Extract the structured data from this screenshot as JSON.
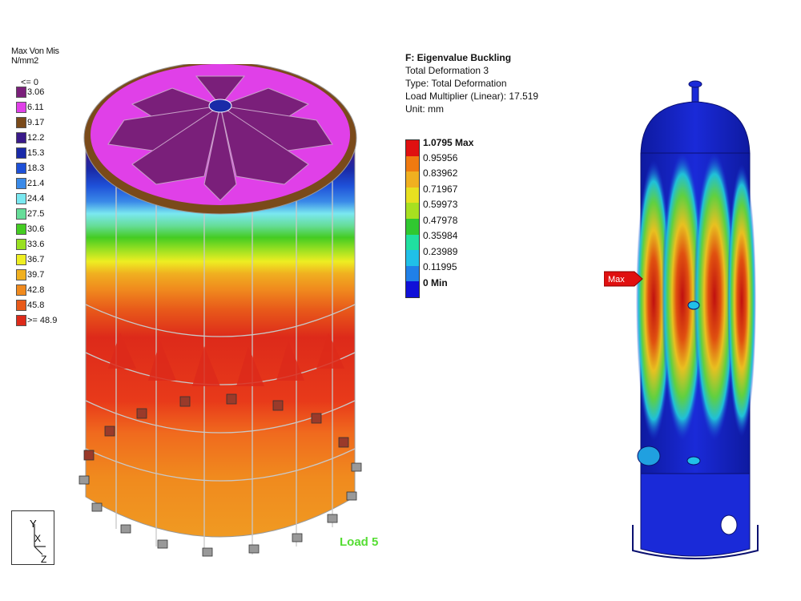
{
  "left_legend": {
    "title_line1": "Max Von Mis",
    "title_line2": "N/mm2",
    "entries": [
      {
        "label": "<= 0",
        "color": null
      },
      {
        "label": "3.06",
        "color": "#7a1f7a"
      },
      {
        "label": "6.11",
        "color": "#e040e8"
      },
      {
        "label": "9.17",
        "color": "#7a4a1a"
      },
      {
        "label": "12.2",
        "color": "#3a1a8a"
      },
      {
        "label": "15.3",
        "color": "#1a2aa8"
      },
      {
        "label": "18.3",
        "color": "#1e50d8"
      },
      {
        "label": "21.4",
        "color": "#3a8ae8"
      },
      {
        "label": "24.4",
        "color": "#7ae8f0"
      },
      {
        "label": "27.5",
        "color": "#66dd99"
      },
      {
        "label": "30.6",
        "color": "#44cc22"
      },
      {
        "label": "33.6",
        "color": "#99e022"
      },
      {
        "label": "36.7",
        "color": "#eeee22"
      },
      {
        "label": "39.7",
        "color": "#f0b020"
      },
      {
        "label": "42.8",
        "color": "#f08a1e"
      },
      {
        "label": "45.8",
        "color": "#e85a1a"
      },
      {
        "label": ">= 48.9",
        "color": "#dd2a1a"
      }
    ]
  },
  "triad": {
    "y": "Y",
    "x": "X",
    "z": "Z"
  },
  "load_label": "Load 5",
  "analysis": {
    "title": "F: Eigenvalue Buckling",
    "line1": "Total Deformation 3",
    "line2": "Type: Total Deformation",
    "line3": "Load Multiplier (Linear): 17.519",
    "line4": "Unit: mm"
  },
  "deformation_scale": {
    "max_label": "1.0795 Max",
    "values": [
      "0.95956",
      "0.83962",
      "0.71967",
      "0.59973",
      "0.47978",
      "0.35984",
      "0.23989",
      "0.11995"
    ],
    "min_label": "0 Min",
    "colors": [
      "#e01010",
      "#f07a10",
      "#f0b020",
      "#e8e020",
      "#a8e020",
      "#30c830",
      "#20e0a0",
      "#20c0e8",
      "#2080e8",
      "#1010d8"
    ]
  },
  "max_flag": "Max"
}
